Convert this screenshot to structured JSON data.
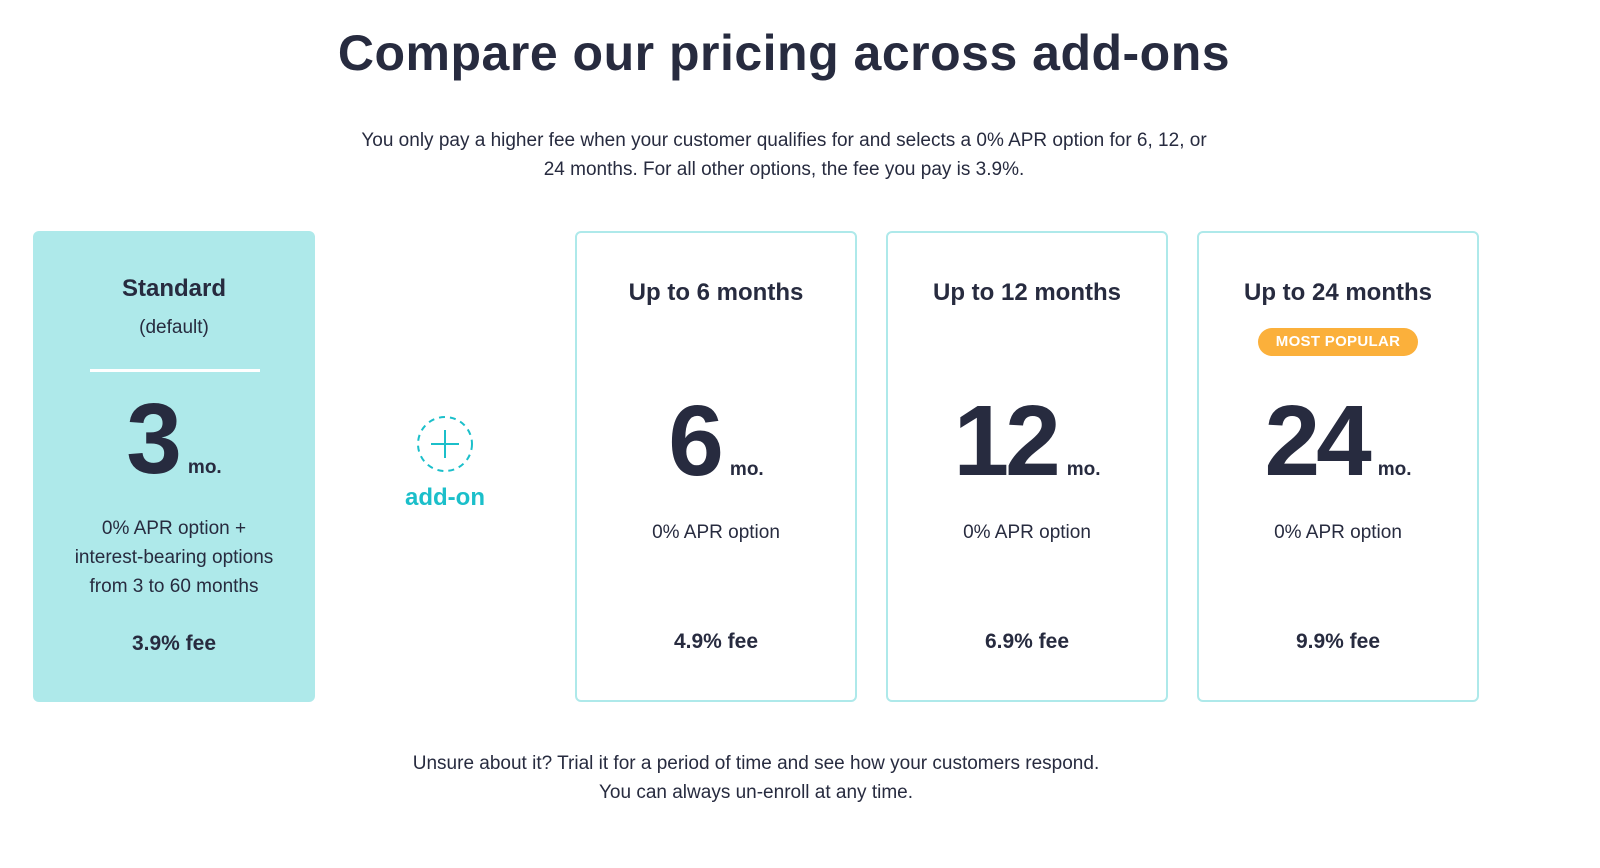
{
  "header": {
    "title": "Compare our pricing across add-ons",
    "subtitle_line1": "You only pay a higher fee when your customer qualifies for and selects a 0% APR option for 6, 12, or",
    "subtitle_line2": "24 months. For all other options, the fee you pay is 3.9%."
  },
  "standard": {
    "name": "Standard",
    "sub": "(default)",
    "number": "3",
    "unit": "mo.",
    "desc_line1": "0% APR option +",
    "desc_line2": "interest-bearing options",
    "desc_line3": "from 3 to 60 months",
    "fee": "3.9% fee"
  },
  "addon": {
    "label": "add-on",
    "icon": "plus-circle-dashed-icon",
    "color": "#1bbfca"
  },
  "plans": [
    {
      "name": "Up to 6 months",
      "number": "6",
      "unit": "mo.",
      "desc": "0% APR option",
      "fee": "4.9% fee"
    },
    {
      "name": "Up to 12 months",
      "number": "12",
      "unit": "mo.",
      "desc": "0% APR option",
      "fee": "6.9% fee"
    },
    {
      "name": "Up to 24 months",
      "badge": "MOST POPULAR",
      "number": "24",
      "unit": "mo.",
      "desc": "0% APR option",
      "fee": "9.9% fee"
    }
  ],
  "footer": {
    "line1": "Unsure about it? Trial it for a period of time and see how your customers respond.",
    "line2": "You can always un-enroll at any time."
  },
  "colors": {
    "text": "#272b3f",
    "standard_bg": "#aee9ea",
    "card_border": "#aee9ea",
    "accent": "#1bbfca",
    "badge": "#fbb03b"
  }
}
